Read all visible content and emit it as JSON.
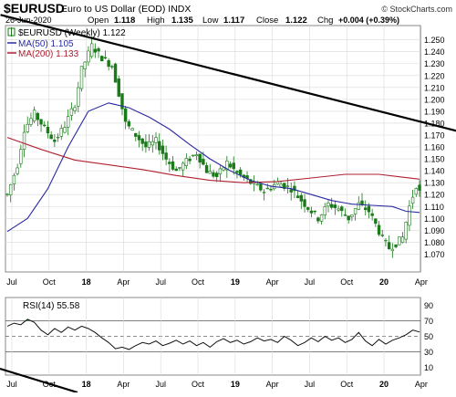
{
  "header": {
    "symbol": "$EURUSD",
    "description": "Euro to US Dollar (EOD) INDX",
    "date": "26-Jun-2020",
    "open_label": "Open",
    "open": "1.118",
    "high_label": "High",
    "high": "1.135",
    "low_label": "Low",
    "low": "1.117",
    "close_label": "Close",
    "close": "1.122",
    "chg_label": "Chg",
    "chg": "+0.004 (+0.39%)",
    "watermark": "© StockCharts.com"
  },
  "legend": {
    "price": "$EURUSD (Weekly) 1.122",
    "ma50": "MA(50) 1.105",
    "ma200": "MA(200) 1.133"
  },
  "rsi_legend": "RSI(14) 55.58",
  "colors": {
    "candle": "#1a7a1a",
    "ma50": "#2a2aa0",
    "ma200": "#b02030",
    "rsi": "#111111",
    "rsi_fill": "#2e7d2e",
    "trendline": "#000000",
    "grid": "#d8d8d8"
  },
  "chart_data": [
    {
      "type": "candlestick",
      "title": "$EURUSD",
      "series_names": [
        "$EURUSD (Weekly)",
        "MA(50)",
        "MA(200)"
      ],
      "ylim": [
        1.055,
        1.262
      ],
      "y_ticks": [
        "1.070",
        "1.080",
        "1.090",
        "1.100",
        "1.110",
        "1.120",
        "1.130",
        "1.140",
        "1.150",
        "1.160",
        "1.170",
        "1.180",
        "1.190",
        "1.200",
        "1.210",
        "1.220",
        "1.230",
        "1.240",
        "1.250"
      ],
      "x_ticks": [
        "Jul",
        "Oct",
        "18",
        "Apr",
        "Jul",
        "Oct",
        "19",
        "Apr",
        "Jul",
        "Oct",
        "20",
        "Apr"
      ],
      "price_points": [
        {
          "t": 0,
          "v": 1.12
        },
        {
          "t": 3,
          "v": 1.145
        },
        {
          "t": 5,
          "v": 1.175
        },
        {
          "t": 8,
          "v": 1.188
        },
        {
          "t": 11,
          "v": 1.176
        },
        {
          "t": 14,
          "v": 1.165
        },
        {
          "t": 17,
          "v": 1.178
        },
        {
          "t": 20,
          "v": 1.196
        },
        {
          "t": 22,
          "v": 1.225
        },
        {
          "t": 25,
          "v": 1.245
        },
        {
          "t": 28,
          "v": 1.235
        },
        {
          "t": 31,
          "v": 1.228
        },
        {
          "t": 33,
          "v": 1.205
        },
        {
          "t": 35,
          "v": 1.18
        },
        {
          "t": 38,
          "v": 1.17
        },
        {
          "t": 41,
          "v": 1.16
        },
        {
          "t": 44,
          "v": 1.165
        },
        {
          "t": 47,
          "v": 1.15
        },
        {
          "t": 50,
          "v": 1.14
        },
        {
          "t": 53,
          "v": 1.148
        },
        {
          "t": 56,
          "v": 1.155
        },
        {
          "t": 59,
          "v": 1.14
        },
        {
          "t": 62,
          "v": 1.135
        },
        {
          "t": 65,
          "v": 1.147
        },
        {
          "t": 68,
          "v": 1.138
        },
        {
          "t": 72,
          "v": 1.13
        },
        {
          "t": 76,
          "v": 1.123
        },
        {
          "t": 80,
          "v": 1.13
        },
        {
          "t": 84,
          "v": 1.125
        },
        {
          "t": 88,
          "v": 1.112
        },
        {
          "t": 92,
          "v": 1.1
        },
        {
          "t": 95,
          "v": 1.112
        },
        {
          "t": 98,
          "v": 1.108
        },
        {
          "t": 101,
          "v": 1.1
        },
        {
          "t": 104,
          "v": 1.112
        },
        {
          "t": 107,
          "v": 1.106
        },
        {
          "t": 109,
          "v": 1.095
        },
        {
          "t": 111,
          "v": 1.083
        },
        {
          "t": 113,
          "v": 1.075
        },
        {
          "t": 115,
          "v": 1.079
        },
        {
          "t": 117,
          "v": 1.084
        },
        {
          "t": 119,
          "v": 1.11
        },
        {
          "t": 121,
          "v": 1.128
        },
        {
          "t": 122,
          "v": 1.122
        }
      ],
      "ma50_points": [
        {
          "t": 0,
          "v": 1.089
        },
        {
          "t": 6,
          "v": 1.1
        },
        {
          "t": 12,
          "v": 1.125
        },
        {
          "t": 18,
          "v": 1.16
        },
        {
          "t": 24,
          "v": 1.19
        },
        {
          "t": 30,
          "v": 1.197
        },
        {
          "t": 36,
          "v": 1.193
        },
        {
          "t": 42,
          "v": 1.185
        },
        {
          "t": 48,
          "v": 1.175
        },
        {
          "t": 54,
          "v": 1.162
        },
        {
          "t": 60,
          "v": 1.15
        },
        {
          "t": 66,
          "v": 1.14
        },
        {
          "t": 72,
          "v": 1.132
        },
        {
          "t": 78,
          "v": 1.127
        },
        {
          "t": 84,
          "v": 1.125
        },
        {
          "t": 90,
          "v": 1.12
        },
        {
          "t": 96,
          "v": 1.115
        },
        {
          "t": 102,
          "v": 1.112
        },
        {
          "t": 108,
          "v": 1.111
        },
        {
          "t": 114,
          "v": 1.11
        },
        {
          "t": 118,
          "v": 1.106
        },
        {
          "t": 122,
          "v": 1.105
        }
      ],
      "ma200_points": [
        {
          "t": 0,
          "v": 1.168
        },
        {
          "t": 10,
          "v": 1.158
        },
        {
          "t": 20,
          "v": 1.149
        },
        {
          "t": 30,
          "v": 1.145
        },
        {
          "t": 40,
          "v": 1.141
        },
        {
          "t": 50,
          "v": 1.136
        },
        {
          "t": 60,
          "v": 1.132
        },
        {
          "t": 70,
          "v": 1.13
        },
        {
          "t": 80,
          "v": 1.131
        },
        {
          "t": 90,
          "v": 1.134
        },
        {
          "t": 100,
          "v": 1.137
        },
        {
          "t": 110,
          "v": 1.137
        },
        {
          "t": 116,
          "v": 1.135
        },
        {
          "t": 122,
          "v": 1.133
        }
      ],
      "trendline_points": [
        {
          "t": -2,
          "v": 1.271
        },
        {
          "t": 124,
          "v": 1.18
        }
      ]
    },
    {
      "type": "line",
      "title": "RSI(14)",
      "ylim": [
        0,
        100
      ],
      "y_ticks": [
        "10",
        "30",
        "50",
        "70",
        "90"
      ],
      "reference_lines": [
        30,
        50,
        70
      ],
      "x_ticks": [
        "Jul",
        "Oct",
        "18",
        "Apr",
        "Jul",
        "Oct",
        "19",
        "Apr",
        "Jul",
        "Oct",
        "20",
        "Apr"
      ],
      "rsi_points": [
        {
          "t": 0,
          "v": 63
        },
        {
          "t": 2,
          "v": 67
        },
        {
          "t": 4,
          "v": 65
        },
        {
          "t": 6,
          "v": 72
        },
        {
          "t": 8,
          "v": 68
        },
        {
          "t": 10,
          "v": 58
        },
        {
          "t": 12,
          "v": 52
        },
        {
          "t": 14,
          "v": 60
        },
        {
          "t": 16,
          "v": 55
        },
        {
          "t": 18,
          "v": 62
        },
        {
          "t": 20,
          "v": 58
        },
        {
          "t": 22,
          "v": 63
        },
        {
          "t": 24,
          "v": 60
        },
        {
          "t": 26,
          "v": 55
        },
        {
          "t": 28,
          "v": 48
        },
        {
          "t": 30,
          "v": 42
        },
        {
          "t": 32,
          "v": 34
        },
        {
          "t": 34,
          "v": 36
        },
        {
          "t": 36,
          "v": 33
        },
        {
          "t": 38,
          "v": 38
        },
        {
          "t": 40,
          "v": 42
        },
        {
          "t": 42,
          "v": 40
        },
        {
          "t": 44,
          "v": 44
        },
        {
          "t": 46,
          "v": 38
        },
        {
          "t": 48,
          "v": 41
        },
        {
          "t": 50,
          "v": 45
        },
        {
          "t": 52,
          "v": 40
        },
        {
          "t": 54,
          "v": 44
        },
        {
          "t": 56,
          "v": 38
        },
        {
          "t": 58,
          "v": 42
        },
        {
          "t": 60,
          "v": 36
        },
        {
          "t": 62,
          "v": 43
        },
        {
          "t": 64,
          "v": 47
        },
        {
          "t": 66,
          "v": 42
        },
        {
          "t": 68,
          "v": 45
        },
        {
          "t": 70,
          "v": 40
        },
        {
          "t": 72,
          "v": 43
        },
        {
          "t": 74,
          "v": 48
        },
        {
          "t": 76,
          "v": 44
        },
        {
          "t": 78,
          "v": 46
        },
        {
          "t": 80,
          "v": 42
        },
        {
          "t": 82,
          "v": 50
        },
        {
          "t": 84,
          "v": 45
        },
        {
          "t": 86,
          "v": 38
        },
        {
          "t": 88,
          "v": 42
        },
        {
          "t": 90,
          "v": 48
        },
        {
          "t": 92,
          "v": 43
        },
        {
          "t": 94,
          "v": 50
        },
        {
          "t": 96,
          "v": 45
        },
        {
          "t": 98,
          "v": 48
        },
        {
          "t": 100,
          "v": 42
        },
        {
          "t": 102,
          "v": 46
        },
        {
          "t": 104,
          "v": 55
        },
        {
          "t": 106,
          "v": 44
        },
        {
          "t": 108,
          "v": 38
        },
        {
          "t": 110,
          "v": 46
        },
        {
          "t": 112,
          "v": 40
        },
        {
          "t": 114,
          "v": 45
        },
        {
          "t": 116,
          "v": 48
        },
        {
          "t": 118,
          "v": 52
        },
        {
          "t": 120,
          "v": 58
        },
        {
          "t": 122,
          "v": 55.58
        }
      ]
    }
  ]
}
